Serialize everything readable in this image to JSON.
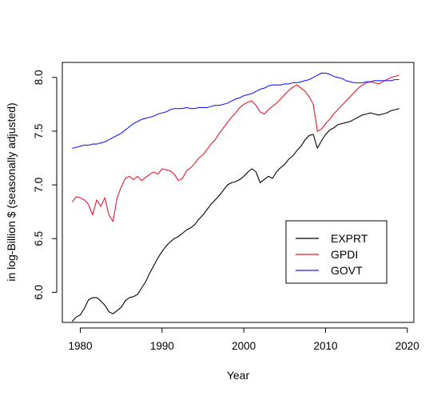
{
  "chart_data": {
    "type": "line",
    "xlabel": "Year",
    "ylabel": "in log-Billion $ (seasonally adjusted)",
    "xlim": [
      1977.8,
      2020.8
    ],
    "ylim": [
      5.72,
      8.14
    ],
    "xticks": [
      1980,
      1990,
      2000,
      2010,
      2020
    ],
    "yticks": [
      6.0,
      6.5,
      7.0,
      7.5,
      8.0
    ],
    "xtick_labels": [
      "1980",
      "1990",
      "2000",
      "2010",
      "2020"
    ],
    "ytick_labels": [
      "6.0",
      "6.5",
      "7.0",
      "7.5",
      "8.0"
    ],
    "legend_position": "bottom-right",
    "grid": false,
    "series": [
      {
        "name": "EXPRT",
        "color": "#000000",
        "x": [
          1979.0,
          1979.5,
          1980.0,
          1980.5,
          1981.0,
          1981.5,
          1982.0,
          1982.5,
          1983.0,
          1983.5,
          1984.0,
          1984.5,
          1985.0,
          1985.5,
          1986.0,
          1986.5,
          1987.0,
          1987.5,
          1988.0,
          1988.5,
          1989.0,
          1989.5,
          1990.0,
          1990.5,
          1991.0,
          1991.5,
          1992.0,
          1992.5,
          1993.0,
          1993.5,
          1994.0,
          1994.5,
          1995.0,
          1995.5,
          1996.0,
          1996.5,
          1997.0,
          1997.5,
          1998.0,
          1998.5,
          1999.0,
          1999.5,
          2000.0,
          2000.5,
          2001.0,
          2001.5,
          2002.0,
          2002.5,
          2003.0,
          2003.5,
          2004.0,
          2004.5,
          2005.0,
          2005.5,
          2006.0,
          2006.5,
          2007.0,
          2007.5,
          2008.0,
          2008.5,
          2009.0,
          2009.5,
          2010.0,
          2010.5,
          2011.0,
          2011.5,
          2012.0,
          2012.5,
          2013.0,
          2013.5,
          2014.0,
          2014.5,
          2015.0,
          2015.5,
          2016.0,
          2016.5,
          2017.0,
          2017.5,
          2018.0,
          2018.5,
          2019.0
        ],
        "values": [
          5.73,
          5.77,
          5.79,
          5.85,
          5.93,
          5.95,
          5.95,
          5.92,
          5.88,
          5.82,
          5.8,
          5.83,
          5.86,
          5.92,
          5.95,
          5.96,
          5.98,
          6.04,
          6.1,
          6.18,
          6.25,
          6.32,
          6.38,
          6.43,
          6.47,
          6.5,
          6.52,
          6.55,
          6.58,
          6.6,
          6.63,
          6.68,
          6.72,
          6.77,
          6.82,
          6.86,
          6.9,
          6.95,
          7.0,
          7.02,
          7.03,
          7.05,
          7.08,
          7.12,
          7.15,
          7.12,
          7.02,
          7.05,
          7.08,
          7.06,
          7.12,
          7.16,
          7.19,
          7.24,
          7.27,
          7.32,
          7.36,
          7.42,
          7.46,
          7.47,
          7.34,
          7.41,
          7.47,
          7.51,
          7.53,
          7.56,
          7.57,
          7.58,
          7.59,
          7.61,
          7.63,
          7.65,
          7.66,
          7.67,
          7.66,
          7.65,
          7.66,
          7.67,
          7.69,
          7.7,
          7.71
        ]
      },
      {
        "name": "GPDI",
        "color": "#e8192c",
        "x": [
          1979.0,
          1979.5,
          1980.0,
          1980.5,
          1981.0,
          1981.5,
          1982.0,
          1982.5,
          1983.0,
          1983.5,
          1984.0,
          1984.5,
          1985.0,
          1985.5,
          1986.0,
          1986.5,
          1987.0,
          1987.5,
          1988.0,
          1988.5,
          1989.0,
          1989.5,
          1990.0,
          1990.5,
          1991.0,
          1991.5,
          1992.0,
          1992.5,
          1993.0,
          1993.5,
          1994.0,
          1994.5,
          1995.0,
          1995.5,
          1996.0,
          1996.5,
          1997.0,
          1997.5,
          1998.0,
          1998.5,
          1999.0,
          1999.5,
          2000.0,
          2000.5,
          2001.0,
          2001.5,
          2002.0,
          2002.5,
          2003.0,
          2003.5,
          2004.0,
          2004.5,
          2005.0,
          2005.5,
          2006.0,
          2006.5,
          2007.0,
          2007.5,
          2008.0,
          2008.5,
          2009.0,
          2009.5,
          2010.0,
          2010.5,
          2011.0,
          2011.5,
          2012.0,
          2012.5,
          2013.0,
          2013.5,
          2014.0,
          2014.5,
          2015.0,
          2015.5,
          2016.0,
          2016.5,
          2017.0,
          2017.5,
          2018.0,
          2018.5,
          2019.0
        ],
        "values": [
          6.84,
          6.89,
          6.88,
          6.86,
          6.82,
          6.72,
          6.86,
          6.8,
          6.88,
          6.72,
          6.66,
          6.88,
          6.98,
          7.06,
          7.08,
          7.05,
          7.08,
          7.04,
          7.07,
          7.1,
          7.12,
          7.1,
          7.15,
          7.14,
          7.13,
          7.1,
          7.04,
          7.06,
          7.13,
          7.16,
          7.2,
          7.25,
          7.28,
          7.33,
          7.38,
          7.42,
          7.48,
          7.53,
          7.58,
          7.63,
          7.67,
          7.72,
          7.75,
          7.77,
          7.78,
          7.74,
          7.68,
          7.66,
          7.7,
          7.73,
          7.76,
          7.8,
          7.84,
          7.88,
          7.91,
          7.93,
          7.9,
          7.87,
          7.82,
          7.75,
          7.5,
          7.52,
          7.57,
          7.61,
          7.66,
          7.7,
          7.74,
          7.78,
          7.82,
          7.86,
          7.9,
          7.93,
          7.95,
          7.96,
          7.95,
          7.94,
          7.96,
          7.98,
          8.0,
          8.01,
          8.02
        ]
      },
      {
        "name": "GOVT",
        "color": "#1a1aff",
        "x": [
          1979.0,
          1979.5,
          1980.0,
          1980.5,
          1981.0,
          1981.5,
          1982.0,
          1982.5,
          1983.0,
          1983.5,
          1984.0,
          1984.5,
          1985.0,
          1985.5,
          1986.0,
          1986.5,
          1987.0,
          1987.5,
          1988.0,
          1988.5,
          1989.0,
          1989.5,
          1990.0,
          1990.5,
          1991.0,
          1991.5,
          1992.0,
          1992.5,
          1993.0,
          1993.5,
          1994.0,
          1994.5,
          1995.0,
          1995.5,
          1996.0,
          1996.5,
          1997.0,
          1997.5,
          1998.0,
          1998.5,
          1999.0,
          1999.5,
          2000.0,
          2000.5,
          2001.0,
          2001.5,
          2002.0,
          2002.5,
          2003.0,
          2003.5,
          2004.0,
          2004.5,
          2005.0,
          2005.5,
          2006.0,
          2006.5,
          2007.0,
          2007.5,
          2008.0,
          2008.5,
          2009.0,
          2009.5,
          2010.0,
          2010.5,
          2011.0,
          2011.5,
          2012.0,
          2012.5,
          2013.0,
          2013.5,
          2014.0,
          2014.5,
          2015.0,
          2015.5,
          2016.0,
          2016.5,
          2017.0,
          2017.5,
          2018.0,
          2018.5,
          2019.0
        ],
        "values": [
          7.34,
          7.35,
          7.36,
          7.37,
          7.37,
          7.38,
          7.38,
          7.39,
          7.4,
          7.42,
          7.44,
          7.46,
          7.48,
          7.51,
          7.54,
          7.57,
          7.59,
          7.61,
          7.62,
          7.63,
          7.64,
          7.66,
          7.67,
          7.68,
          7.7,
          7.71,
          7.71,
          7.71,
          7.72,
          7.71,
          7.71,
          7.72,
          7.72,
          7.72,
          7.73,
          7.74,
          7.74,
          7.75,
          7.76,
          7.78,
          7.8,
          7.81,
          7.83,
          7.84,
          7.85,
          7.87,
          7.89,
          7.9,
          7.92,
          7.93,
          7.93,
          7.93,
          7.94,
          7.94,
          7.95,
          7.95,
          7.96,
          7.97,
          7.98,
          8.0,
          8.02,
          8.04,
          8.04,
          8.03,
          8.01,
          8.0,
          7.99,
          7.97,
          7.96,
          7.95,
          7.95,
          7.95,
          7.96,
          7.96,
          7.97,
          7.97,
          7.97,
          7.97,
          7.97,
          7.98,
          7.98
        ]
      }
    ]
  }
}
